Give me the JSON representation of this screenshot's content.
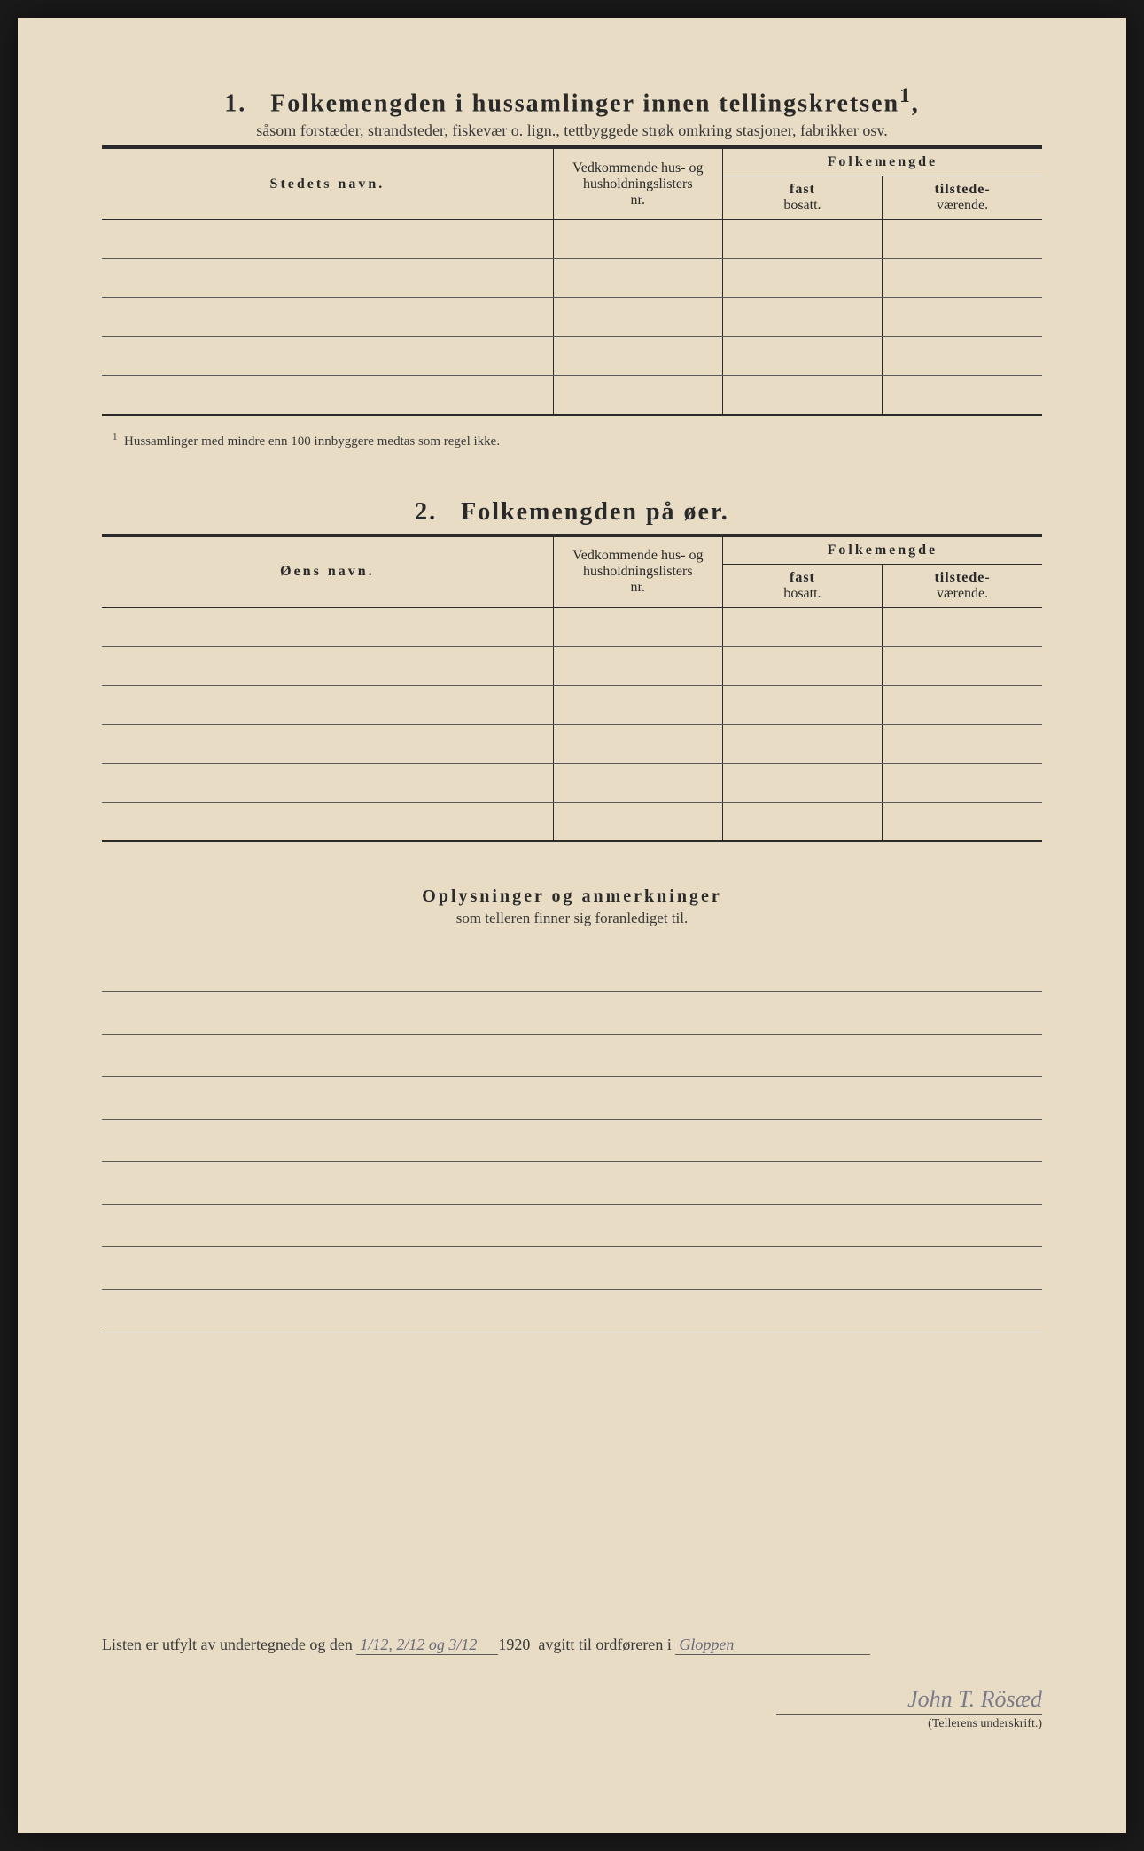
{
  "section1": {
    "number": "1.",
    "title": "Folkemengden i hussamlinger innen tellingskretsen",
    "title_sup": "1",
    "subtitle": "såsom forstæder, strandsteder, fiskevær o. lign., tettbyggede strøk omkring stasjoner, fabrikker osv.",
    "col_name": "Stedets navn.",
    "col_nr_line1": "Vedkommende hus- og",
    "col_nr_line2": "husholdningslisters",
    "col_nr_line3": "nr.",
    "col_folk": "Folkemengde",
    "col_fast_bold": "fast",
    "col_fast_sub": "bosatt.",
    "col_til_bold": "tilstede-",
    "col_til_sub": "værende.",
    "row_count": 5,
    "footnote": "Hussamlinger med mindre enn 100 innbyggere medtas som regel ikke."
  },
  "section2": {
    "number": "2.",
    "title": "Folkemengden på øer.",
    "col_name": "Øens navn.",
    "row_count": 6
  },
  "remarks": {
    "title": "Oplysninger og anmerkninger",
    "subtitle": "som telleren finner sig foranlediget til.",
    "line_count": 9
  },
  "bottom": {
    "text_before": "Listen er utfylt av undertegnede og den",
    "date_value": "1/12, 2/12 og 3/12",
    "year": "1920",
    "text_mid": "avgitt til ordføreren i",
    "place_value": "Gloppen",
    "signature": "John T. Rösæd",
    "sig_label": "(Tellerens underskrift.)"
  },
  "colors": {
    "paper": "#e8dcc4",
    "ink": "#2a2a2a",
    "line": "#5a5a5a",
    "handwriting": "#7a7a8a"
  }
}
